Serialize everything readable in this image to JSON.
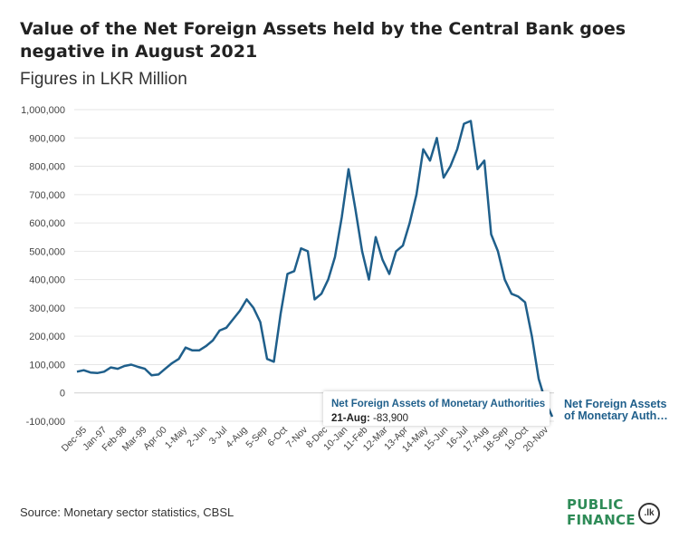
{
  "header": {
    "title": "Value of the Net Foreign Assets held by the Central Bank goes negative in August 2021",
    "subtitle": "Figures in LKR Million"
  },
  "footer": {
    "source": "Source: Monetary sector statistics, CBSL",
    "logo_text_line1": "PUBLIC",
    "logo_text_line2": "FINANCE",
    "logo_badge": ".lk"
  },
  "tooltip": {
    "series": "Net Foreign Assets of Monetary Authorities",
    "date": "21-Aug",
    "value": "-83,900"
  },
  "colors": {
    "line": "#1f5f8b",
    "grid": "#e6e6e6",
    "axis_text": "#444444",
    "logo_green": "#2e8b57"
  },
  "chart_data": {
    "type": "line",
    "title": "Value of the Net Foreign Assets held by the Central Bank goes negative in August 2021",
    "subtitle": "Figures in LKR Million",
    "ylim": [
      -100000,
      1000000
    ],
    "yticks": [
      -100000,
      0,
      100000,
      200000,
      300000,
      400000,
      500000,
      600000,
      700000,
      800000,
      900000,
      1000000
    ],
    "ytick_labels": [
      "-100,000",
      "0",
      "100,000",
      "200,000",
      "300,000",
      "400,000",
      "500,000",
      "600,000",
      "700,000",
      "800,000",
      "900,000",
      "1,000,000"
    ],
    "xtick_labels": [
      "Dec-95",
      "Jan-97",
      "Feb-98",
      "Mar-99",
      "Apr-00",
      "1-May",
      "2-Jun",
      "3-Jul",
      "4-Aug",
      "5-Sep",
      "6-Oct",
      "7-Nov",
      "8-Dec",
      "10-Jan",
      "11-Feb",
      "12-Mar",
      "13-Apr",
      "14-May",
      "15-Jun",
      "16-Jul",
      "17-Aug",
      "18-Sep",
      "19-Oct",
      "20-Nov"
    ],
    "xtick_label_display": [
      "Dec-95",
      "Jan-97",
      "Feb-98",
      "Mar-99",
      "Apr-00",
      "1-May",
      "2-Jun",
      "3-Jul",
      "4-Aug",
      "5-Sep",
      "6-Oct",
      "7-Nov",
      "8-Dec",
      "10-Jan",
      "11-Feb",
      "12-Mar",
      "13-Apr",
      "14-May",
      "15-Jun",
      "16-Jul",
      "17-Aug",
      "18-Sep",
      "19-Oct",
      "20-Nov"
    ],
    "grid": "horizontal",
    "series": [
      {
        "name": "Net Foreign Assets of Monetary Authorities",
        "label_text": "Net Foreign Assets of Monetary Auth…",
        "x": [
          "Dec-95",
          "Jun-96",
          "Dec-96",
          "Jun-97",
          "Dec-97",
          "Jun-98",
          "Dec-98",
          "Jun-99",
          "Dec-99",
          "Jun-00",
          "Dec-00",
          "Jun-01",
          "Dec-01",
          "Jun-02",
          "Dec-02",
          "Jun-03",
          "Dec-03",
          "Jun-04",
          "Dec-04",
          "Jun-05",
          "Dec-05",
          "Jun-06",
          "Dec-06",
          "Jun-07",
          "Dec-07",
          "Jun-08",
          "Sep-08",
          "Dec-08",
          "Mar-09",
          "Jun-09",
          "Sep-09",
          "Dec-09",
          "Jun-10",
          "Dec-10",
          "Jun-11",
          "Dec-11",
          "Jun-12",
          "Dec-12",
          "Jun-13",
          "Dec-13",
          "Mar-14",
          "Jun-14",
          "Sep-14",
          "Dec-14",
          "Mar-15",
          "Jun-15",
          "Sep-15",
          "Dec-15",
          "Mar-16",
          "Jun-16",
          "Sep-16",
          "Dec-16",
          "Mar-17",
          "Jun-17",
          "Sep-17",
          "Dec-17",
          "Mar-18",
          "Jun-18",
          "Sep-18",
          "Dec-18",
          "Mar-19",
          "Jun-19",
          "Sep-19",
          "Dec-19",
          "Mar-20",
          "Jun-20",
          "Sep-20",
          "Dec-20",
          "Mar-21",
          "Jun-21",
          "Aug-21"
        ],
        "values": [
          75000,
          80000,
          72000,
          70000,
          75000,
          90000,
          85000,
          95000,
          100000,
          92000,
          85000,
          62000,
          65000,
          85000,
          105000,
          120000,
          160000,
          150000,
          150000,
          165000,
          185000,
          220000,
          230000,
          260000,
          290000,
          330000,
          300000,
          250000,
          120000,
          110000,
          280000,
          420000,
          430000,
          510000,
          500000,
          330000,
          350000,
          400000,
          480000,
          620000,
          790000,
          650000,
          500000,
          400000,
          550000,
          470000,
          420000,
          500000,
          520000,
          600000,
          700000,
          860000,
          820000,
          900000,
          760000,
          800000,
          860000,
          950000,
          960000,
          790000,
          820000,
          560000,
          500000,
          400000,
          350000,
          340000,
          320000,
          200000,
          50000,
          -30000,
          -83900
        ]
      }
    ]
  }
}
